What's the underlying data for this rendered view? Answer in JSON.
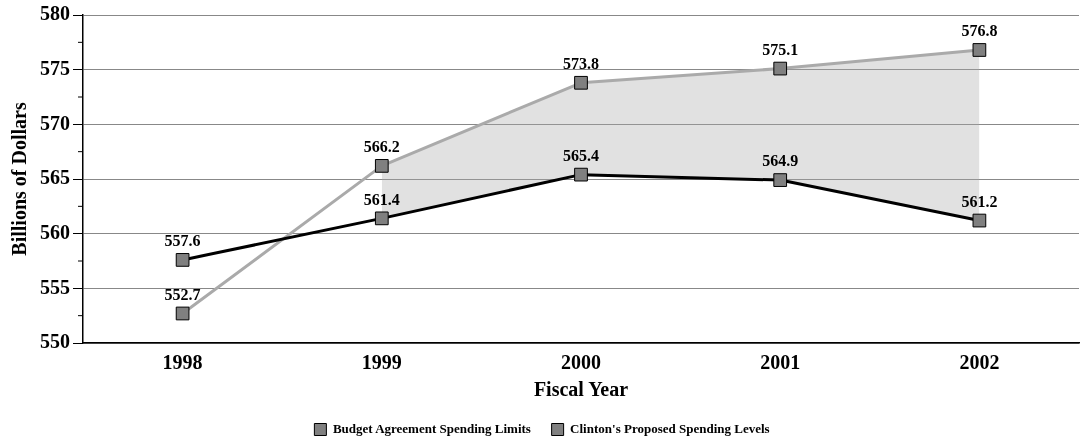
{
  "chart_data": {
    "type": "line",
    "xlabel": "Fiscal Year",
    "ylabel": "Billions of Dollars",
    "categories": [
      "1998",
      "1999",
      "2000",
      "2001",
      "2002"
    ],
    "series": [
      {
        "name": "Budget Agreement Spending Limits",
        "color": "#000000",
        "values": [
          557.6,
          561.4,
          565.4,
          564.9,
          561.2
        ]
      },
      {
        "name": "Clinton's Proposed Spending Levels",
        "color": "#aaaaaa",
        "values": [
          552.7,
          566.2,
          573.8,
          575.1,
          576.8
        ],
        "lower": [
          null,
          561.4,
          565.4,
          564.9,
          561.2
        ],
        "upper": [
          null,
          566.2,
          573.8,
          575.1,
          576.8
        ]
      }
    ],
    "ylim": [
      550,
      580
    ],
    "yticks": [
      550,
      555,
      560,
      565,
      570,
      575,
      580
    ],
    "grid": "y",
    "legend": "bottom",
    "marker": "square",
    "line_style": "solid",
    "data_labels": true
  }
}
